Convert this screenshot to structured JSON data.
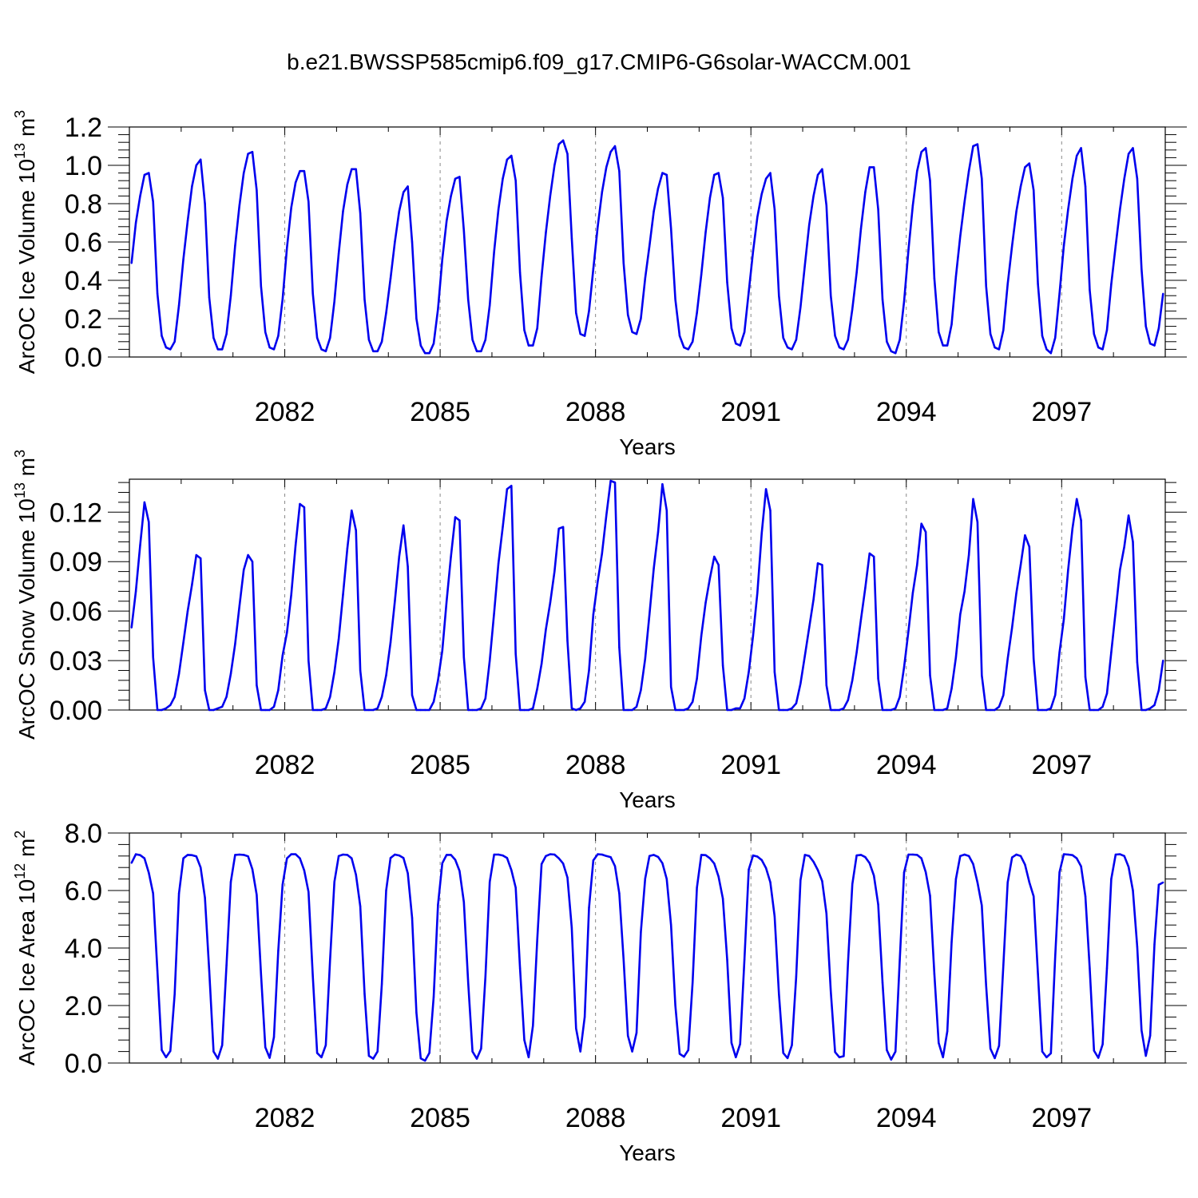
{
  "title": "b.e21.BWSSP585cmip6.f09_g17.CMIP6-G6solar-WACCM.001",
  "colors": {
    "line": "#0000ee",
    "axis": "#000000",
    "refline": "#888888"
  },
  "chart_data": [
    {
      "type": "line",
      "title": "",
      "ylabel_main": "ArcOC Ice Volume 10",
      "ylabel_exp": "13",
      "ylabel_unit_base": " m",
      "ylabel_unit_exp": "3",
      "xlabel": "Years",
      "xlim": [
        2079.0,
        2099.0
      ],
      "ylim": [
        0.0,
        1.2
      ],
      "y_tick_values": [
        0.0,
        0.2,
        0.4,
        0.6,
        0.8,
        1.0,
        1.2
      ],
      "y_tick_labels": [
        "0.0",
        "0.2",
        "0.4",
        "0.6",
        "0.8",
        "1.0",
        "1.2"
      ],
      "x_tick_values": [
        2082,
        2085,
        2088,
        2091,
        2094,
        2097
      ],
      "x_tick_labels": [
        "2082",
        "2085",
        "2088",
        "2091",
        "2094",
        "2097"
      ],
      "grid": "dashed vertical lines at labeled years",
      "series": [
        {
          "values": [
            0.49,
            0.7,
            0.84,
            0.95,
            0.96,
            0.81,
            0.33,
            0.11,
            0.05,
            0.04,
            0.08,
            0.27,
            0.51,
            0.71,
            0.89,
            1.0,
            1.03,
            0.8,
            0.31,
            0.1,
            0.04,
            0.04,
            0.12,
            0.32,
            0.58,
            0.79,
            0.96,
            1.06,
            1.07,
            0.87,
            0.37,
            0.13,
            0.05,
            0.04,
            0.11,
            0.3,
            0.57,
            0.78,
            0.91,
            0.97,
            0.97,
            0.81,
            0.33,
            0.1,
            0.04,
            0.03,
            0.1,
            0.29,
            0.54,
            0.76,
            0.9,
            0.98,
            0.98,
            0.75,
            0.3,
            0.09,
            0.03,
            0.03,
            0.08,
            0.23,
            0.41,
            0.6,
            0.76,
            0.86,
            0.89,
            0.6,
            0.2,
            0.06,
            0.02,
            0.02,
            0.07,
            0.25,
            0.51,
            0.71,
            0.84,
            0.93,
            0.94,
            0.66,
            0.3,
            0.09,
            0.03,
            0.03,
            0.09,
            0.27,
            0.55,
            0.77,
            0.93,
            1.03,
            1.05,
            0.92,
            0.44,
            0.14,
            0.06,
            0.06,
            0.15,
            0.42,
            0.65,
            0.84,
            1.0,
            1.11,
            1.13,
            1.06,
            0.62,
            0.23,
            0.12,
            0.11,
            0.24,
            0.46,
            0.68,
            0.86,
            0.99,
            1.07,
            1.1,
            0.97,
            0.49,
            0.22,
            0.13,
            0.12,
            0.2,
            0.41,
            0.58,
            0.76,
            0.88,
            0.96,
            0.95,
            0.67,
            0.3,
            0.11,
            0.05,
            0.04,
            0.08,
            0.23,
            0.43,
            0.65,
            0.83,
            0.95,
            0.96,
            0.83,
            0.39,
            0.15,
            0.07,
            0.06,
            0.13,
            0.34,
            0.55,
            0.73,
            0.85,
            0.93,
            0.96,
            0.77,
            0.32,
            0.1,
            0.05,
            0.04,
            0.09,
            0.26,
            0.48,
            0.69,
            0.84,
            0.95,
            0.98,
            0.79,
            0.32,
            0.11,
            0.05,
            0.04,
            0.09,
            0.25,
            0.44,
            0.67,
            0.86,
            0.99,
            0.99,
            0.77,
            0.3,
            0.08,
            0.03,
            0.02,
            0.09,
            0.29,
            0.56,
            0.79,
            0.97,
            1.07,
            1.09,
            0.92,
            0.41,
            0.13,
            0.06,
            0.06,
            0.17,
            0.42,
            0.63,
            0.81,
            0.97,
            1.1,
            1.11,
            0.93,
            0.37,
            0.12,
            0.05,
            0.04,
            0.14,
            0.38,
            0.58,
            0.76,
            0.89,
            0.99,
            1.01,
            0.87,
            0.38,
            0.11,
            0.04,
            0.02,
            0.1,
            0.33,
            0.58,
            0.77,
            0.93,
            1.05,
            1.09,
            0.89,
            0.35,
            0.12,
            0.05,
            0.04,
            0.14,
            0.38,
            0.58,
            0.77,
            0.93,
            1.06,
            1.09,
            0.93,
            0.46,
            0.16,
            0.07,
            0.06,
            0.15,
            0.33
          ]
        }
      ]
    },
    {
      "type": "line",
      "title": "",
      "ylabel_main": "ArcOC Snow Volume 10",
      "ylabel_exp": "13",
      "ylabel_unit_base": " m",
      "ylabel_unit_exp": "3",
      "xlabel": "Years",
      "xlim": [
        2079.0,
        2099.0
      ],
      "ylim": [
        0.0,
        0.14
      ],
      "y_tick_values": [
        0.0,
        0.03,
        0.06,
        0.09,
        0.12
      ],
      "y_tick_labels": [
        "0.00",
        "0.03",
        "0.06",
        "0.09",
        "0.12"
      ],
      "x_tick_values": [
        2082,
        2085,
        2088,
        2091,
        2094,
        2097
      ],
      "x_tick_labels": [
        "2082",
        "2085",
        "2088",
        "2091",
        "2094",
        "2097"
      ],
      "grid": "dashed vertical lines at labeled years",
      "series": [
        {
          "values": [
            0.05,
            0.072,
            0.1,
            0.126,
            0.114,
            0.032,
            0.0,
            0.0,
            0.001,
            0.003,
            0.008,
            0.022,
            0.041,
            0.06,
            0.076,
            0.094,
            0.092,
            0.012,
            0.0,
            0.0,
            0.001,
            0.002,
            0.008,
            0.022,
            0.04,
            0.063,
            0.085,
            0.094,
            0.09,
            0.015,
            0.0,
            0.0,
            0.0,
            0.002,
            0.012,
            0.033,
            0.047,
            0.07,
            0.1,
            0.125,
            0.123,
            0.03,
            0.0,
            0.0,
            0.0,
            0.001,
            0.008,
            0.023,
            0.043,
            0.07,
            0.098,
            0.121,
            0.109,
            0.024,
            0.0,
            0.0,
            0.0,
            0.001,
            0.008,
            0.021,
            0.041,
            0.066,
            0.093,
            0.112,
            0.087,
            0.009,
            0.0,
            0.0,
            0.0,
            0.0,
            0.005,
            0.018,
            0.036,
            0.066,
            0.093,
            0.117,
            0.115,
            0.032,
            0.0,
            0.0,
            0.0,
            0.001,
            0.007,
            0.03,
            0.059,
            0.089,
            0.111,
            0.134,
            0.136,
            0.034,
            0.0,
            0.0,
            0.0,
            0.001,
            0.013,
            0.028,
            0.049,
            0.065,
            0.084,
            0.11,
            0.111,
            0.042,
            0.001,
            0.0,
            0.001,
            0.005,
            0.024,
            0.058,
            0.078,
            0.095,
            0.118,
            0.139,
            0.138,
            0.038,
            0.0,
            0.0,
            0.0,
            0.002,
            0.012,
            0.031,
            0.058,
            0.086,
            0.108,
            0.137,
            0.121,
            0.014,
            0.0,
            0.0,
            0.0,
            0.001,
            0.005,
            0.019,
            0.045,
            0.065,
            0.08,
            0.093,
            0.088,
            0.027,
            0.0,
            0.0,
            0.001,
            0.001,
            0.007,
            0.023,
            0.045,
            0.071,
            0.107,
            0.134,
            0.121,
            0.023,
            0.0,
            0.0,
            0.0,
            0.001,
            0.004,
            0.016,
            0.033,
            0.05,
            0.067,
            0.089,
            0.088,
            0.015,
            0.0,
            0.0,
            0.0,
            0.001,
            0.006,
            0.018,
            0.035,
            0.055,
            0.074,
            0.095,
            0.093,
            0.019,
            0.0,
            0.0,
            0.0,
            0.001,
            0.008,
            0.026,
            0.048,
            0.071,
            0.088,
            0.113,
            0.108,
            0.021,
            0.0,
            0.0,
            0.0,
            0.001,
            0.013,
            0.032,
            0.058,
            0.072,
            0.094,
            0.128,
            0.114,
            0.021,
            0.0,
            0.0,
            0.0,
            0.002,
            0.009,
            0.031,
            0.05,
            0.071,
            0.088,
            0.106,
            0.099,
            0.031,
            0.0,
            0.0,
            0.0,
            0.001,
            0.009,
            0.035,
            0.055,
            0.085,
            0.11,
            0.128,
            0.115,
            0.02,
            0.0,
            0.0,
            0.0,
            0.002,
            0.01,
            0.035,
            0.06,
            0.085,
            0.099,
            0.118,
            0.102,
            0.029,
            0.0,
            0.0,
            0.001,
            0.003,
            0.012,
            0.03
          ]
        }
      ]
    },
    {
      "type": "line",
      "title": "",
      "ylabel_main": "ArcOC Ice Area 10",
      "ylabel_exp": "12",
      "ylabel_unit_base": " m",
      "ylabel_unit_exp": "2",
      "xlabel": "Years",
      "xlim": [
        2079.0,
        2099.0
      ],
      "ylim": [
        0.0,
        8.0
      ],
      "y_tick_values": [
        0.0,
        2.0,
        4.0,
        6.0,
        8.0
      ],
      "y_tick_labels": [
        "0.0",
        "2.0",
        "4.0",
        "6.0",
        "8.0"
      ],
      "x_tick_values": [
        2082,
        2085,
        2088,
        2091,
        2094,
        2097
      ],
      "x_tick_labels": [
        "2082",
        "2085",
        "2088",
        "2091",
        "2094",
        "2097"
      ],
      "grid": "dashed vertical lines at labeled years",
      "series": [
        {
          "values": [
            6.96,
            7.26,
            7.23,
            7.12,
            6.62,
            5.9,
            3.2,
            0.45,
            0.2,
            0.42,
            2.4,
            5.9,
            7.12,
            7.24,
            7.23,
            7.19,
            6.8,
            5.75,
            3.2,
            0.4,
            0.15,
            0.62,
            3.4,
            6.3,
            7.24,
            7.25,
            7.24,
            7.19,
            6.74,
            5.85,
            3.1,
            0.55,
            0.18,
            0.9,
            3.9,
            6.2,
            7.12,
            7.26,
            7.26,
            7.12,
            6.7,
            5.95,
            3.0,
            0.35,
            0.2,
            0.62,
            3.6,
            6.3,
            7.2,
            7.25,
            7.24,
            7.12,
            6.55,
            5.45,
            2.4,
            0.25,
            0.15,
            0.4,
            2.75,
            6.0,
            7.13,
            7.25,
            7.22,
            7.13,
            6.6,
            5.05,
            1.75,
            0.16,
            0.08,
            0.35,
            2.3,
            5.5,
            6.95,
            7.24,
            7.24,
            7.07,
            6.68,
            5.6,
            2.8,
            0.4,
            0.15,
            0.5,
            3.0,
            6.3,
            7.25,
            7.25,
            7.22,
            7.13,
            6.71,
            6.1,
            3.3,
            0.8,
            0.2,
            1.3,
            4.3,
            6.92,
            7.2,
            7.26,
            7.25,
            7.12,
            6.94,
            6.45,
            4.7,
            1.2,
            0.4,
            1.6,
            5.4,
            7.05,
            7.26,
            7.25,
            7.2,
            7.16,
            6.85,
            5.9,
            3.6,
            0.95,
            0.4,
            1.05,
            4.55,
            6.41,
            7.2,
            7.24,
            7.17,
            6.95,
            6.4,
            4.8,
            2.0,
            0.32,
            0.22,
            0.45,
            2.8,
            6.1,
            7.24,
            7.23,
            7.12,
            6.94,
            6.48,
            5.72,
            3.6,
            0.7,
            0.2,
            0.66,
            3.6,
            6.73,
            7.22,
            7.18,
            7.06,
            6.78,
            6.29,
            5.1,
            2.4,
            0.35,
            0.17,
            0.62,
            3.0,
            6.36,
            7.24,
            7.2,
            7.0,
            6.71,
            6.33,
            5.2,
            2.5,
            0.38,
            0.2,
            0.24,
            3.5,
            6.22,
            7.22,
            7.24,
            7.16,
            6.95,
            6.52,
            5.51,
            2.8,
            0.45,
            0.12,
            0.4,
            3.6,
            6.63,
            7.25,
            7.25,
            7.24,
            7.12,
            6.64,
            5.82,
            3.1,
            0.7,
            0.2,
            1.1,
            4.2,
            6.4,
            7.2,
            7.25,
            7.2,
            6.92,
            6.28,
            5.48,
            2.7,
            0.5,
            0.17,
            0.6,
            3.4,
            6.28,
            7.15,
            7.25,
            7.2,
            6.9,
            6.29,
            5.8,
            3.1,
            0.4,
            0.2,
            0.34,
            3.7,
            6.64,
            7.26,
            7.25,
            7.23,
            7.12,
            6.84,
            5.8,
            3.3,
            0.43,
            0.18,
            0.65,
            3.3,
            6.4,
            7.25,
            7.26,
            7.2,
            6.82,
            6.0,
            4.05,
            1.14,
            0.25,
            0.95,
            4.13,
            6.2,
            6.28
          ]
        }
      ]
    }
  ]
}
